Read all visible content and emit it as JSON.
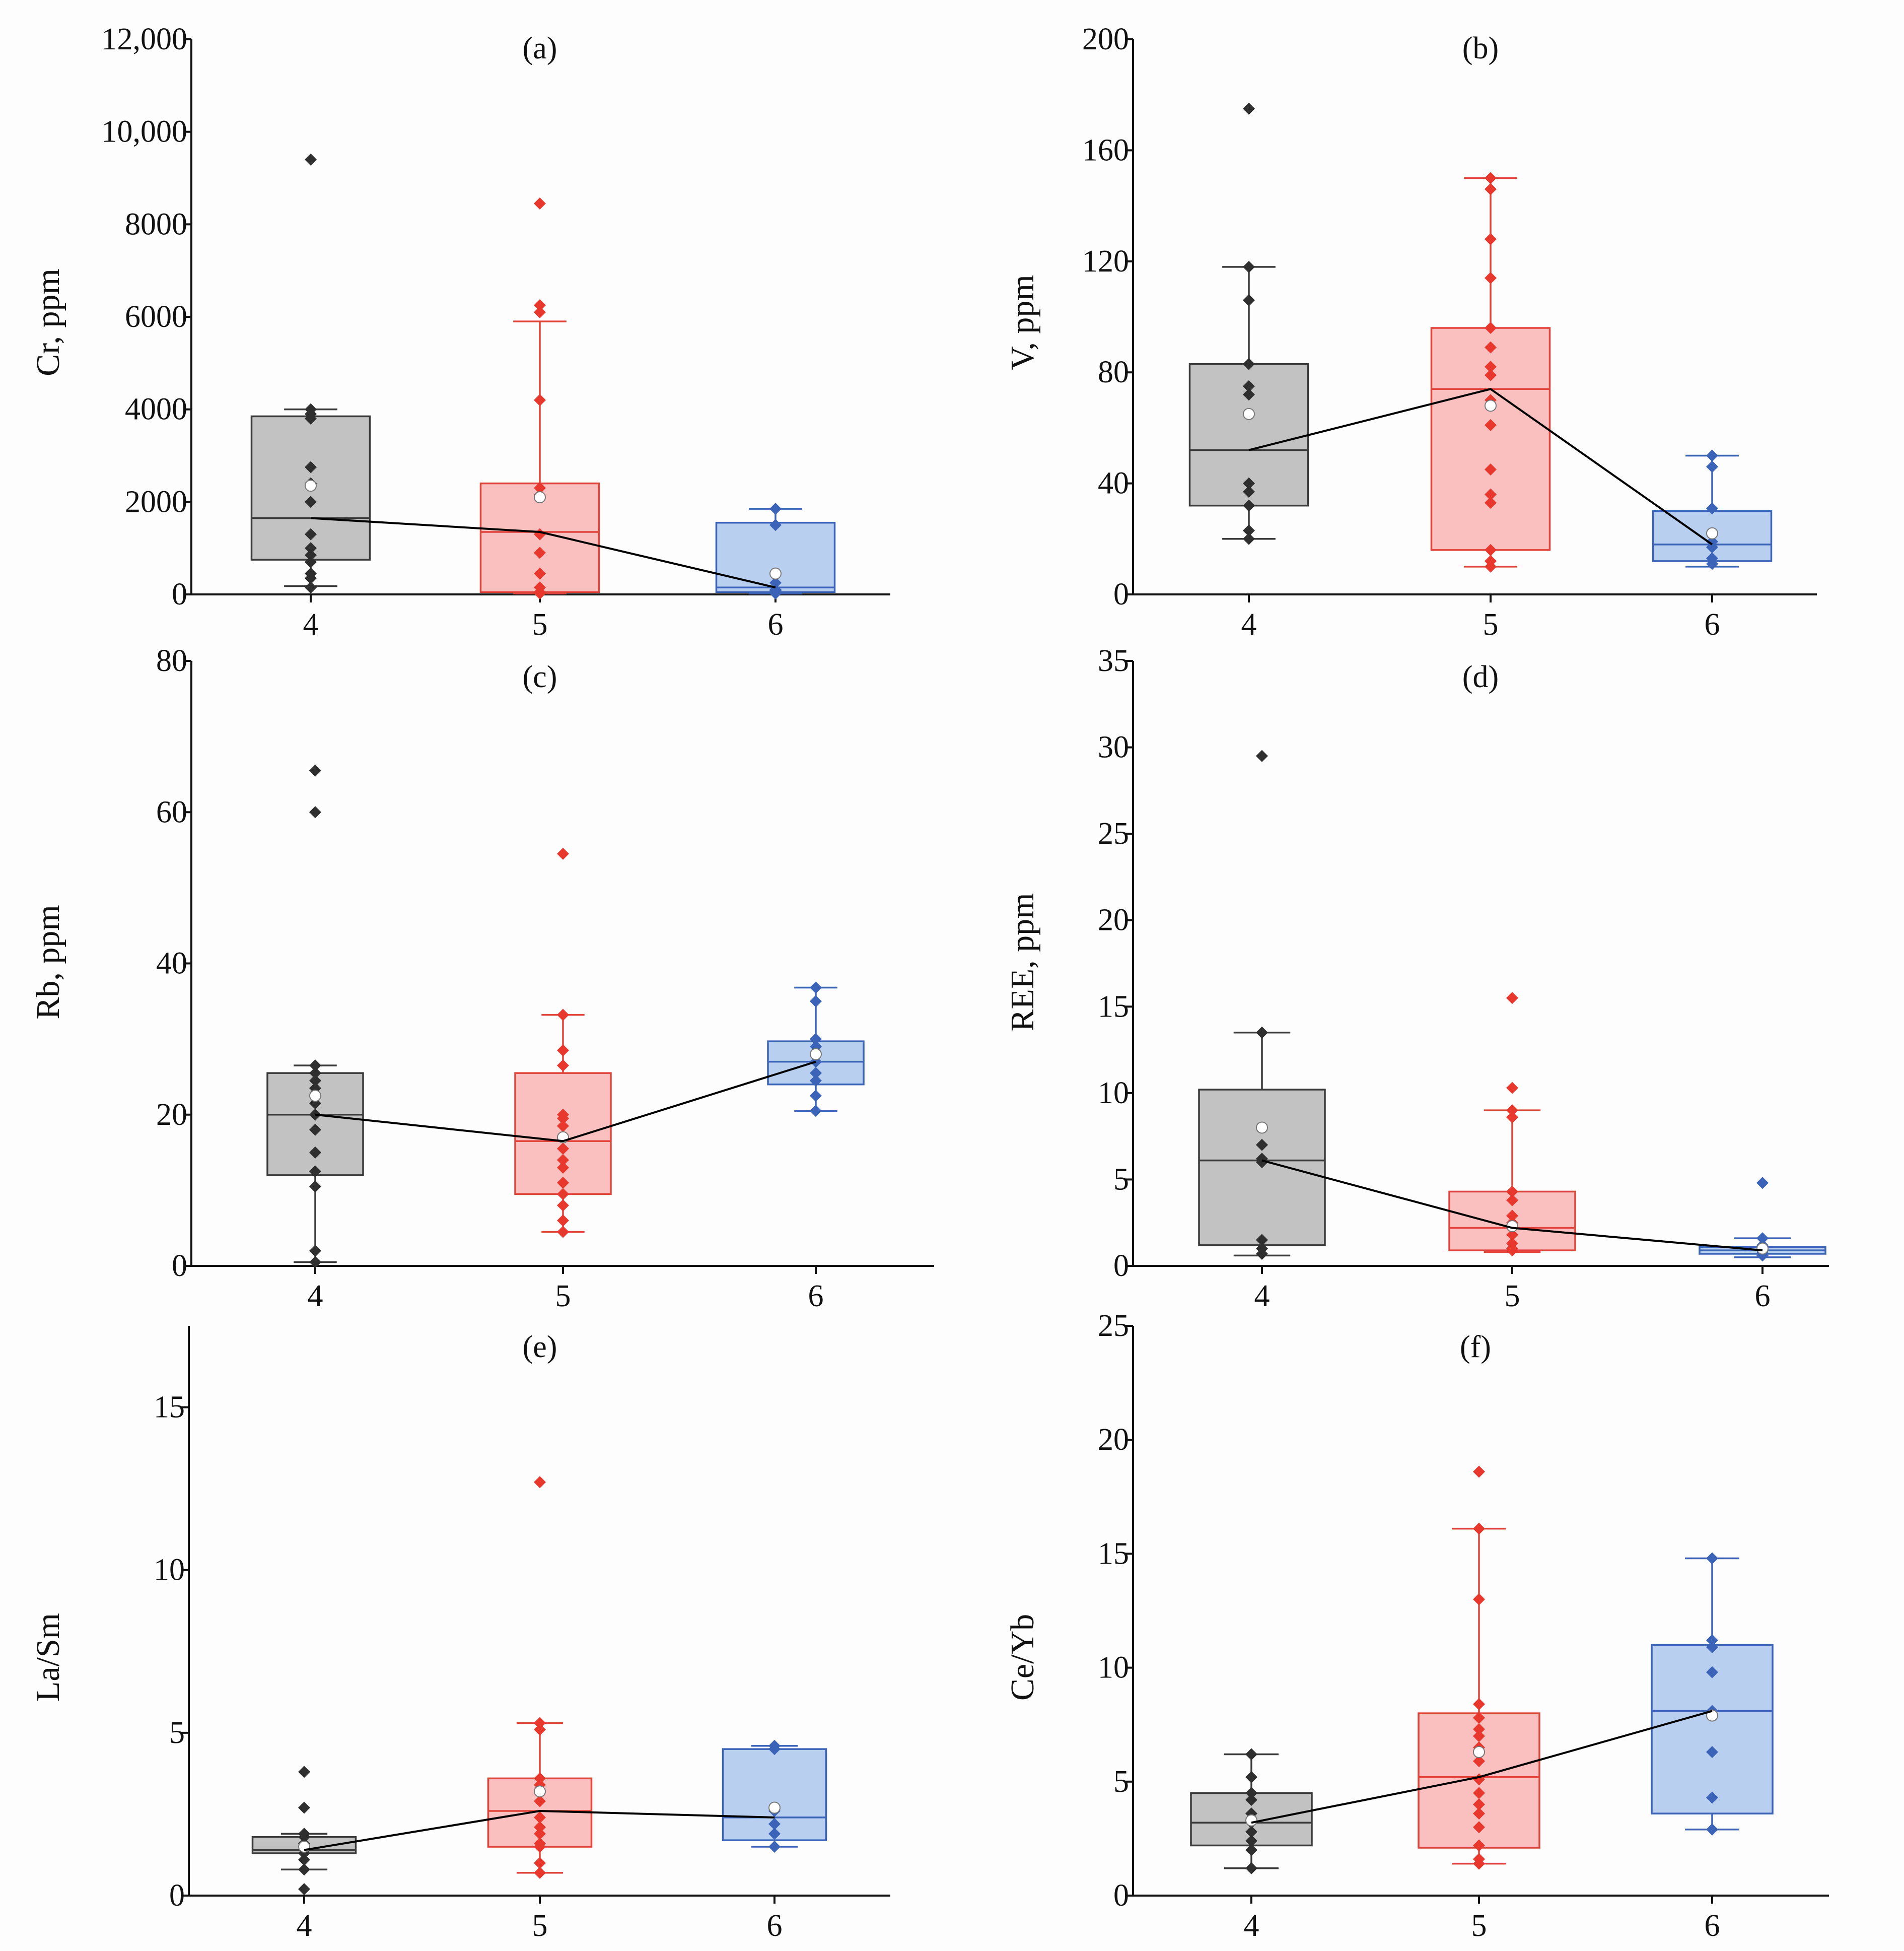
{
  "colors": {
    "group_4": {
      "stroke": "#3a3a3a",
      "fill": "#c2c2c2",
      "point": "#2f2f2f"
    },
    "group_5": {
      "stroke": "#e0443a",
      "fill": "#fac0c0",
      "point": "#e8382e"
    },
    "group_6": {
      "stroke": "#3b63b8",
      "fill": "#b9cff0",
      "point": "#3b63b8"
    },
    "mean_marker": "#ffffff",
    "median_line": "#000000"
  },
  "chart_data": [
    {
      "type": "box",
      "panel": "(a)",
      "ylabel": "Cr, ppm",
      "ylim": [
        0,
        12000
      ],
      "yticks": [
        0,
        2000,
        4000,
        6000,
        8000,
        10000,
        12000
      ],
      "ytick_labels": [
        "0",
        "2000",
        "4000",
        "6000",
        "8000",
        "10,000",
        "12,000"
      ],
      "categories": [
        "4",
        "5",
        "6"
      ],
      "boxes": [
        {
          "category": "4",
          "q1": 750,
          "median": 1650,
          "q3": 3850,
          "whisker_low": 180,
          "whisker_high": 4000,
          "mean": 2350,
          "points": [
            9400,
            4000,
            3900,
            3800,
            2750,
            2400,
            2000,
            1300,
            1000,
            850,
            700,
            450,
            350,
            150
          ]
        },
        {
          "category": "5",
          "q1": 50,
          "median": 1350,
          "q3": 2400,
          "whisker_low": 20,
          "whisker_high": 5900,
          "mean": 2100,
          "points": [
            8450,
            6250,
            6100,
            4200,
            2300,
            2150,
            1300,
            900,
            450,
            150,
            50,
            20
          ]
        },
        {
          "category": "6",
          "q1": 50,
          "median": 150,
          "q3": 1550,
          "whisker_low": 20,
          "whisker_high": 1850,
          "mean": 450,
          "points": [
            1850,
            1500,
            250,
            100,
            80,
            40,
            20
          ]
        }
      ],
      "median_line": [
        1650,
        1350,
        150
      ]
    },
    {
      "type": "box",
      "panel": "(b)",
      "ylabel": "V, ppm",
      "ylim": [
        0,
        200
      ],
      "yticks": [
        0,
        40,
        80,
        120,
        160,
        200
      ],
      "ytick_labels": [
        "0",
        "40",
        "80",
        "120",
        "160",
        "200"
      ],
      "categories": [
        "4",
        "5",
        "6"
      ],
      "boxes": [
        {
          "category": "4",
          "q1": 32,
          "median": 52,
          "q3": 83,
          "whisker_low": 20,
          "whisker_high": 118,
          "mean": 65,
          "points": [
            175,
            118,
            106,
            83,
            75,
            72,
            65,
            40,
            37,
            32,
            23,
            20
          ]
        },
        {
          "category": "5",
          "q1": 16,
          "median": 74,
          "q3": 96,
          "whisker_low": 10,
          "whisker_high": 150,
          "mean": 68,
          "points": [
            150,
            146,
            128,
            114,
            96,
            89,
            82,
            79,
            70,
            61,
            45,
            36,
            33,
            16,
            12,
            10
          ]
        },
        {
          "category": "6",
          "q1": 12,
          "median": 18,
          "q3": 30,
          "whisker_low": 10,
          "whisker_high": 50,
          "mean": 22,
          "points": [
            50,
            46,
            31,
            19,
            17,
            13,
            11
          ]
        }
      ],
      "median_line": [
        52,
        74,
        18
      ]
    },
    {
      "type": "box",
      "panel": "(c)",
      "ylabel": "Rb, ppm",
      "ylim": [
        0,
        80
      ],
      "yticks": [
        0,
        20,
        40,
        60,
        80
      ],
      "ytick_labels": [
        "0",
        "20",
        "40",
        "60",
        "80"
      ],
      "categories": [
        "4",
        "5",
        "6"
      ],
      "boxes": [
        {
          "category": "4",
          "q1": 12,
          "median": 20,
          "q3": 25.5,
          "whisker_low": 0.5,
          "whisker_high": 26.5,
          "mean": 22.5,
          "points": [
            65.5,
            60,
            26.5,
            25.5,
            24.5,
            23.5,
            21.5,
            20,
            18,
            15,
            12.5,
            10.5,
            2,
            0.5
          ]
        },
        {
          "category": "5",
          "q1": 9.5,
          "median": 16.5,
          "q3": 25.5,
          "whisker_low": 4.5,
          "whisker_high": 33.2,
          "mean": 17,
          "points": [
            54.5,
            33.2,
            28.5,
            26.5,
            20,
            19.5,
            18.5,
            17,
            15.5,
            14,
            13,
            11,
            9.5,
            8,
            6,
            4.5
          ]
        },
        {
          "category": "6",
          "q1": 24,
          "median": 27,
          "q3": 29.7,
          "whisker_low": 20.5,
          "whisker_high": 36.8,
          "mean": 28,
          "points": [
            36.8,
            35,
            30,
            29,
            27,
            25.5,
            24.5,
            22.5,
            20.5
          ]
        }
      ],
      "median_line": [
        20,
        16.5,
        27
      ]
    },
    {
      "type": "box",
      "panel": "(d)",
      "ylabel": "REE, ppm",
      "ylim": [
        0,
        35
      ],
      "yticks": [
        0,
        5,
        10,
        15,
        20,
        25,
        30,
        35
      ],
      "ytick_labels": [
        "0",
        "5",
        "10",
        "15",
        "20",
        "25",
        "30",
        "35"
      ],
      "categories": [
        "4",
        "5",
        "6"
      ],
      "boxes": [
        {
          "category": "4",
          "q1": 1.2,
          "median": 6.1,
          "q3": 10.2,
          "whisker_low": 0.6,
          "whisker_high": 13.5,
          "mean": 8,
          "points": [
            29.5,
            13.5,
            7,
            6.2,
            6,
            1.5,
            1,
            0.7
          ]
        },
        {
          "category": "5",
          "q1": 0.9,
          "median": 2.2,
          "q3": 4.3,
          "whisker_low": 0.8,
          "whisker_high": 9,
          "mean": 2.3,
          "points": [
            15.5,
            10.3,
            9,
            8.6,
            4.3,
            3.8,
            2.9,
            2.5,
            2.2,
            1.8,
            1.3,
            1,
            0.9
          ]
        },
        {
          "category": "6",
          "q1": 0.7,
          "median": 0.9,
          "q3": 1.1,
          "whisker_low": 0.5,
          "whisker_high": 1.6,
          "mean": 1,
          "points": [
            4.8,
            1.6,
            1.2,
            1,
            0.8,
            0.6
          ]
        }
      ],
      "median_line": [
        6.1,
        2.2,
        0.9
      ]
    },
    {
      "type": "box",
      "panel": "(e)",
      "ylabel": "La/Sm",
      "ylim": [
        0,
        17.5
      ],
      "yticks": [
        0,
        5,
        10,
        15
      ],
      "ytick_labels": [
        "0",
        "5",
        "10",
        "15"
      ],
      "categories": [
        "4",
        "5",
        "6"
      ],
      "boxes": [
        {
          "category": "4",
          "q1": 1.3,
          "median": 1.4,
          "q3": 1.8,
          "whisker_low": 0.8,
          "whisker_high": 1.9,
          "mean": 1.5,
          "points": [
            3.8,
            2.7,
            1.9,
            1.8,
            1.6,
            1.4,
            1.3,
            1.1,
            0.8,
            0.2
          ]
        },
        {
          "category": "5",
          "q1": 1.5,
          "median": 2.6,
          "q3": 3.6,
          "whisker_low": 0.7,
          "whisker_high": 5.3,
          "mean": 3.2,
          "points": [
            12.7,
            5.3,
            5.1,
            3.6,
            3.4,
            2.9,
            2.4,
            2.1,
            1.9,
            1.6,
            1.5,
            1,
            0.7
          ]
        },
        {
          "category": "6",
          "q1": 1.7,
          "median": 2.4,
          "q3": 4.5,
          "whisker_low": 1.5,
          "whisker_high": 4.6,
          "mean": 2.7,
          "points": [
            4.6,
            4.5,
            2.6,
            2.2,
            1.9,
            1.5
          ]
        }
      ],
      "median_line": [
        1.4,
        2.6,
        2.4
      ]
    },
    {
      "type": "box",
      "panel": "(f)",
      "ylabel": "Ce/Yb",
      "ylim": [
        0,
        25
      ],
      "yticks": [
        0,
        5,
        10,
        15,
        20,
        25
      ],
      "ytick_labels": [
        "0",
        "5",
        "10",
        "15",
        "20",
        "25"
      ],
      "categories": [
        "4",
        "5",
        "6"
      ],
      "boxes": [
        {
          "category": "4",
          "q1": 2.2,
          "median": 3.2,
          "q3": 4.5,
          "whisker_low": 1.2,
          "whisker_high": 6.2,
          "mean": 3.3,
          "points": [
            6.2,
            5.2,
            4.5,
            4.2,
            3.6,
            3.2,
            2.8,
            2.4,
            2,
            1.2
          ]
        },
        {
          "category": "5",
          "q1": 2.1,
          "median": 5.2,
          "q3": 8,
          "whisker_low": 1.4,
          "whisker_high": 16.1,
          "mean": 6.3,
          "points": [
            18.6,
            16.1,
            13,
            8.4,
            7.8,
            7.3,
            7,
            6.5,
            5.9,
            5.1,
            4.5,
            4,
            3.6,
            3,
            2.2,
            1.6,
            1.4
          ]
        },
        {
          "category": "6",
          "q1": 3.6,
          "median": 8.1,
          "q3": 11,
          "whisker_low": 2.9,
          "whisker_high": 14.8,
          "mean": 7.9,
          "points": [
            14.8,
            11.2,
            10.9,
            9.8,
            8.1,
            6.3,
            4.3,
            2.9
          ]
        }
      ],
      "median_line": [
        3.2,
        5.2,
        8.1
      ]
    }
  ]
}
